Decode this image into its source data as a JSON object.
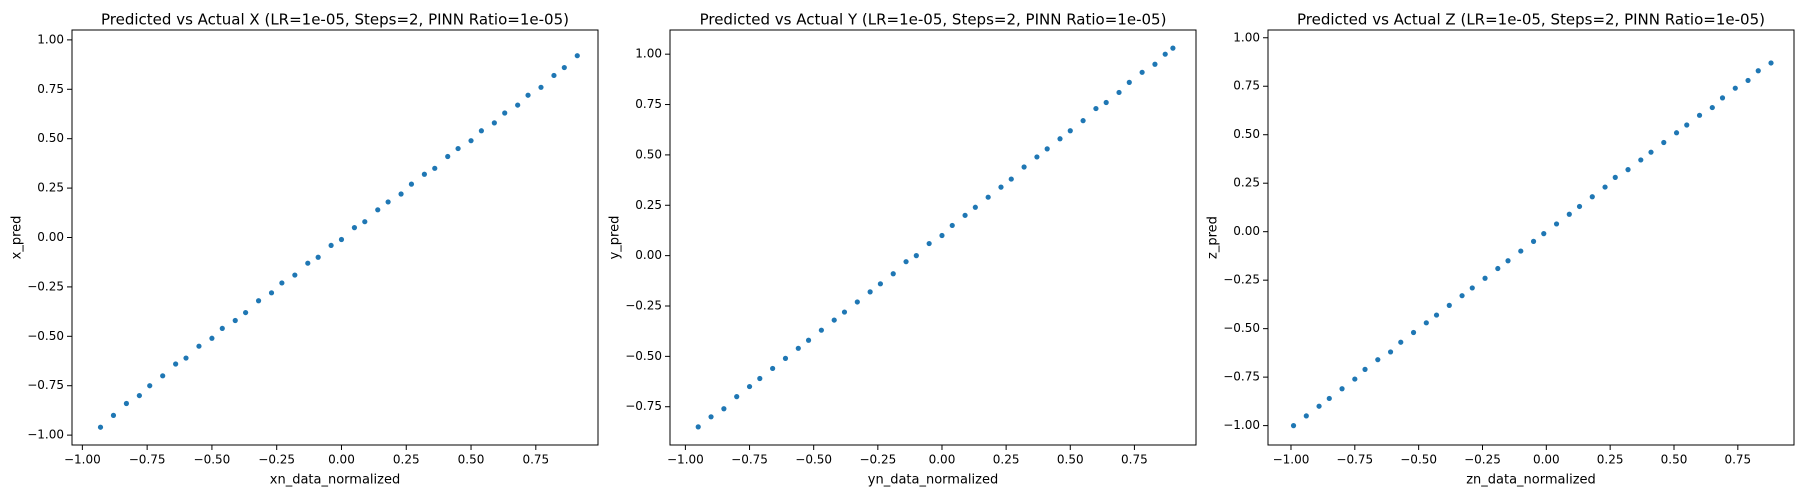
{
  "chart_data": [
    {
      "type": "scatter",
      "title": "Predicted vs Actual X (LR=1e-05, Steps=2, PINN Ratio=1e-05)",
      "x_label": "xn_data_normalized",
      "y_label": "x_pred",
      "color": "#1f77b4",
      "x": [
        -0.93,
        -0.88,
        -0.83,
        -0.78,
        -0.74,
        -0.69,
        -0.64,
        -0.6,
        -0.55,
        -0.5,
        -0.46,
        -0.41,
        -0.37,
        -0.32,
        -0.27,
        -0.23,
        -0.18,
        -0.13,
        -0.09,
        -0.04,
        0.0,
        0.05,
        0.09,
        0.14,
        0.18,
        0.23,
        0.27,
        0.32,
        0.36,
        0.41,
        0.45,
        0.5,
        0.54,
        0.59,
        0.63,
        0.68,
        0.72,
        0.77,
        0.82,
        0.86,
        0.91
      ],
      "values": [
        -0.96,
        -0.9,
        -0.84,
        -0.8,
        -0.75,
        -0.7,
        -0.64,
        -0.61,
        -0.55,
        -0.51,
        -0.46,
        -0.42,
        -0.38,
        -0.32,
        -0.28,
        -0.23,
        -0.19,
        -0.13,
        -0.1,
        -0.04,
        -0.01,
        0.05,
        0.08,
        0.14,
        0.18,
        0.22,
        0.27,
        0.32,
        0.35,
        0.41,
        0.45,
        0.49,
        0.54,
        0.58,
        0.63,
        0.67,
        0.72,
        0.76,
        0.82,
        0.86,
        0.92
      ],
      "xlim": [
        -1.04,
        0.99
      ],
      "ylim": [
        -1.05,
        1.05
      ],
      "xticks": [
        {
          "value": -1,
          "label": "−1.00"
        },
        {
          "value": -0.75,
          "label": "−0.75"
        },
        {
          "value": -0.5,
          "label": "−0.50"
        },
        {
          "value": -0.25,
          "label": "−0.25"
        },
        {
          "value": 0,
          "label": "0.00"
        },
        {
          "value": 0.25,
          "label": "0.25"
        },
        {
          "value": 0.5,
          "label": "0.50"
        },
        {
          "value": 0.75,
          "label": "0.75"
        }
      ],
      "yticks": [
        {
          "value": -1,
          "label": "−1.00"
        },
        {
          "value": -0.75,
          "label": "−0.75"
        },
        {
          "value": -0.5,
          "label": "−0.50"
        },
        {
          "value": -0.25,
          "label": "−0.25"
        },
        {
          "value": 0,
          "label": "0.00"
        },
        {
          "value": 0.25,
          "label": "0.25"
        },
        {
          "value": 0.5,
          "label": "0.50"
        },
        {
          "value": 0.75,
          "label": "0.75"
        },
        {
          "value": 1,
          "label": "1.00"
        }
      ]
    },
    {
      "type": "scatter",
      "title": "Predicted vs Actual Y (LR=1e-05, Steps=2, PINN Ratio=1e-05)",
      "x_label": "yn_data_normalized",
      "y_label": "y_pred",
      "color": "#1f77b4",
      "x": [
        -0.95,
        -0.9,
        -0.85,
        -0.8,
        -0.75,
        -0.71,
        -0.66,
        -0.61,
        -0.56,
        -0.52,
        -0.47,
        -0.42,
        -0.38,
        -0.33,
        -0.28,
        -0.24,
        -0.19,
        -0.14,
        -0.1,
        -0.05,
        0.0,
        0.04,
        0.09,
        0.13,
        0.18,
        0.23,
        0.27,
        0.32,
        0.37,
        0.41,
        0.46,
        0.5,
        0.55,
        0.6,
        0.64,
        0.69,
        0.73,
        0.78,
        0.83,
        0.87,
        0.9
      ],
      "values": [
        -0.85,
        -0.8,
        -0.76,
        -0.7,
        -0.65,
        -0.61,
        -0.56,
        -0.51,
        -0.46,
        -0.42,
        -0.37,
        -0.32,
        -0.28,
        -0.23,
        -0.18,
        -0.14,
        -0.09,
        -0.03,
        0.0,
        0.06,
        0.1,
        0.15,
        0.2,
        0.24,
        0.29,
        0.34,
        0.38,
        0.44,
        0.49,
        0.53,
        0.58,
        0.62,
        0.67,
        0.73,
        0.76,
        0.81,
        0.86,
        0.91,
        0.95,
        1.0,
        1.03
      ],
      "xlim": [
        -1.06,
        0.99
      ],
      "ylim": [
        -0.94,
        1.12
      ],
      "xticks": [
        {
          "value": -1,
          "label": "−1.00"
        },
        {
          "value": -0.75,
          "label": "−0.75"
        },
        {
          "value": -0.5,
          "label": "−0.50"
        },
        {
          "value": -0.25,
          "label": "−0.25"
        },
        {
          "value": 0,
          "label": "0.00"
        },
        {
          "value": 0.25,
          "label": "0.25"
        },
        {
          "value": 0.5,
          "label": "0.50"
        },
        {
          "value": 0.75,
          "label": "0.75"
        }
      ],
      "yticks": [
        {
          "value": -0.75,
          "label": "−0.75"
        },
        {
          "value": -0.5,
          "label": "−0.50"
        },
        {
          "value": -0.25,
          "label": "−0.25"
        },
        {
          "value": 0,
          "label": "0.00"
        },
        {
          "value": 0.25,
          "label": "0.25"
        },
        {
          "value": 0.5,
          "label": "0.50"
        },
        {
          "value": 0.75,
          "label": "0.75"
        },
        {
          "value": 1,
          "label": "1.00"
        }
      ]
    },
    {
      "type": "scatter",
      "title": "Predicted vs Actual Z (LR=1e-05, Steps=2, PINN Ratio=1e-05)",
      "x_label": "zn_data_normalized",
      "y_label": "z_pred",
      "color": "#1f77b4",
      "x": [
        -0.99,
        -0.94,
        -0.89,
        -0.85,
        -0.8,
        -0.75,
        -0.71,
        -0.66,
        -0.61,
        -0.57,
        -0.52,
        -0.47,
        -0.43,
        -0.38,
        -0.33,
        -0.29,
        -0.24,
        -0.19,
        -0.15,
        -0.1,
        -0.05,
        -0.01,
        0.04,
        0.09,
        0.13,
        0.18,
        0.23,
        0.27,
        0.32,
        0.37,
        0.41,
        0.46,
        0.51,
        0.55,
        0.6,
        0.65,
        0.69,
        0.74,
        0.79,
        0.83,
        0.88
      ],
      "values": [
        -1.0,
        -0.95,
        -0.9,
        -0.86,
        -0.81,
        -0.76,
        -0.71,
        -0.66,
        -0.62,
        -0.57,
        -0.52,
        -0.47,
        -0.43,
        -0.38,
        -0.33,
        -0.29,
        -0.24,
        -0.19,
        -0.15,
        -0.1,
        -0.05,
        -0.01,
        0.04,
        0.09,
        0.13,
        0.18,
        0.23,
        0.28,
        0.32,
        0.37,
        0.41,
        0.46,
        0.51,
        0.55,
        0.6,
        0.64,
        0.69,
        0.74,
        0.78,
        0.83,
        0.87
      ],
      "xlim": [
        -1.09,
        0.97
      ],
      "ylim": [
        -1.1,
        1.04
      ],
      "xticks": [
        {
          "value": -1,
          "label": "−1.00"
        },
        {
          "value": -0.75,
          "label": "−0.75"
        },
        {
          "value": -0.5,
          "label": "−0.50"
        },
        {
          "value": -0.25,
          "label": "−0.25"
        },
        {
          "value": 0,
          "label": "0.00"
        },
        {
          "value": 0.25,
          "label": "0.25"
        },
        {
          "value": 0.5,
          "label": "0.50"
        },
        {
          "value": 0.75,
          "label": "0.75"
        }
      ],
      "yticks": [
        {
          "value": -1,
          "label": "−1.00"
        },
        {
          "value": -0.75,
          "label": "−0.75"
        },
        {
          "value": -0.5,
          "label": "−0.50"
        },
        {
          "value": -0.25,
          "label": "−0.25"
        },
        {
          "value": 0,
          "label": "0.00"
        },
        {
          "value": 0.25,
          "label": "0.25"
        },
        {
          "value": 0.5,
          "label": "0.50"
        },
        {
          "value": 0.75,
          "label": "0.75"
        },
        {
          "value": 1,
          "label": "1.00"
        }
      ]
    }
  ]
}
